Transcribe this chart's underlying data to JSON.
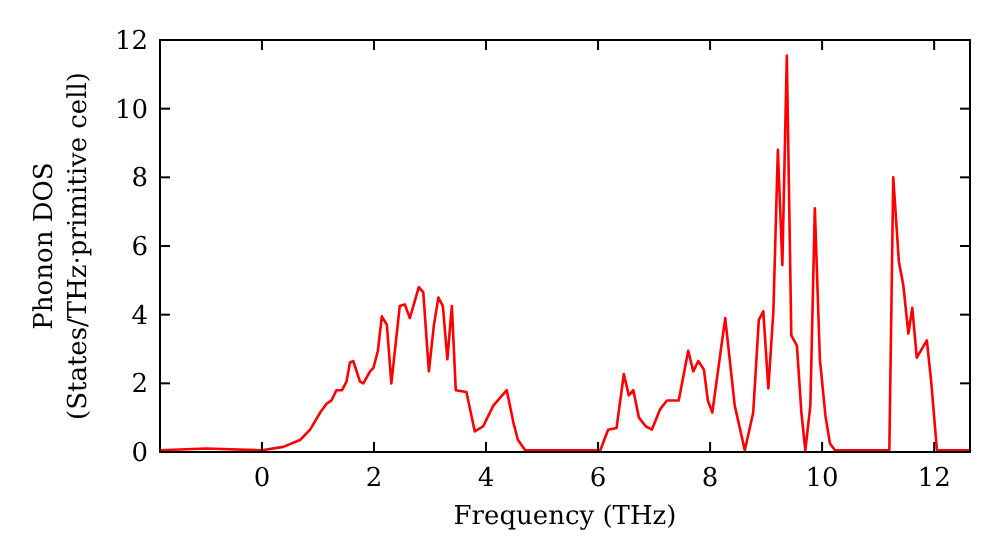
{
  "chart_data": {
    "type": "line",
    "xlabel": "Frequency (THz)",
    "ylabel": "Phonon DOS\n(States/THz·primitive cell)",
    "xlim": [
      -1.82,
      12.64
    ],
    "ylim": [
      0,
      12
    ],
    "xticks": [
      0,
      2,
      4,
      6,
      8,
      10,
      12
    ],
    "yticks": [
      0,
      2,
      4,
      6,
      8,
      10,
      12
    ],
    "grid": false,
    "marker": "none",
    "line_style": "solid",
    "series": [
      {
        "color": "#ff0000",
        "x": [
          -1.82,
          -1.0,
          0,
          0.38,
          0.68,
          0.86,
          1.04,
          1.15,
          1.24,
          1.33,
          1.43,
          1.51,
          1.57,
          1.63,
          1.75,
          1.81,
          1.93,
          1.99,
          2.07,
          2.14,
          2.23,
          2.31,
          2.46,
          2.55,
          2.64,
          2.8,
          2.88,
          2.98,
          3.07,
          3.15,
          3.23,
          3.31,
          3.39,
          3.46,
          3.65,
          3.8,
          3.95,
          4.13,
          4.37,
          4.49,
          4.57,
          4.7,
          6.04,
          6.18,
          6.33,
          6.46,
          6.55,
          6.63,
          6.73,
          6.85,
          6.96,
          7.11,
          7.23,
          7.44,
          7.61,
          7.7,
          7.79,
          7.89,
          7.96,
          8.04,
          8.27,
          8.44,
          8.62,
          8.77,
          8.87,
          8.95,
          9.04,
          9.13,
          9.21,
          9.29,
          9.37,
          9.45,
          9.55,
          9.63,
          9.7,
          9.79,
          9.87,
          9.96,
          10.06,
          10.14,
          10.23,
          11.2,
          11.27,
          11.37,
          11.45,
          11.54,
          11.61,
          11.69,
          11.87,
          11.95,
          12.05,
          12.64
        ],
        "values": [
          0.05,
          0.1,
          0.05,
          0.15,
          0.35,
          0.65,
          1.15,
          1.4,
          1.5,
          1.8,
          1.8,
          2.05,
          2.6,
          2.65,
          2.05,
          2.0,
          2.35,
          2.45,
          2.95,
          3.95,
          3.7,
          2.0,
          4.25,
          4.3,
          3.9,
          4.8,
          4.65,
          2.35,
          3.7,
          4.5,
          4.25,
          2.7,
          4.25,
          1.8,
          1.75,
          0.6,
          0.75,
          1.35,
          1.8,
          0.85,
          0.35,
          0.05,
          0.05,
          0.65,
          0.7,
          2.27,
          1.65,
          1.8,
          1.0,
          0.75,
          0.65,
          1.25,
          1.5,
          1.5,
          2.95,
          2.35,
          2.65,
          2.4,
          1.5,
          1.15,
          3.9,
          1.35,
          0.05,
          1.15,
          3.85,
          4.1,
          1.85,
          4.1,
          8.8,
          5.45,
          11.55,
          3.4,
          3.1,
          1.15,
          0.05,
          1.35,
          7.1,
          2.7,
          1.05,
          0.25,
          0.05,
          0.05,
          8.0,
          5.55,
          4.85,
          3.45,
          4.2,
          2.75,
          3.25,
          2.0,
          0.05,
          0.05
        ]
      }
    ]
  }
}
